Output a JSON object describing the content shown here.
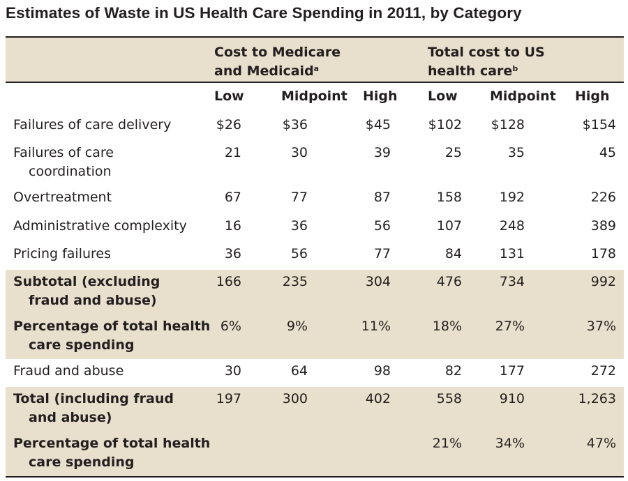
{
  "title": "Estimates of Waste in US Health Care Spending in 2011, by Category",
  "header": {
    "group1": {
      "line1": "Cost to Medicare",
      "line2": "and Medicaid",
      "note": "a"
    },
    "group2": {
      "line1": "Total cost to US",
      "line2": "health care",
      "note": "b"
    },
    "columns": [
      "Low",
      "Midpoint",
      "High",
      "Low",
      "Midpoint",
      "High"
    ]
  },
  "rows": [
    {
      "line1": "Failures of care delivery",
      "line2": "",
      "values": [
        "$26",
        "$36",
        "$45",
        "$102",
        "$128",
        "$154"
      ]
    },
    {
      "line1": "Failures of care",
      "line2": "coordination",
      "values": [
        "21",
        "30",
        "39",
        "25",
        "35",
        "45"
      ]
    },
    {
      "line1": "Overtreatment",
      "line2": "",
      "values": [
        "67",
        "77",
        "87",
        "158",
        "192",
        "226"
      ]
    },
    {
      "line1": "Administrative complexity",
      "line2": "",
      "values": [
        "16",
        "36",
        "56",
        "107",
        "248",
        "389"
      ]
    },
    {
      "line1": "Pricing failures",
      "line2": "",
      "values": [
        "36",
        "56",
        "77",
        "84",
        "131",
        "178"
      ]
    },
    {
      "line1": "Subtotal (excluding",
      "line2": "fraud and abuse)",
      "values": [
        "166",
        "235",
        "304",
        "476",
        "734",
        "992"
      ]
    },
    {
      "line1": "Percentage of total health",
      "line2": "care spending",
      "values": [
        "6%",
        "9%",
        "11%",
        "18%",
        "27%",
        "37%"
      ]
    },
    {
      "line1": "Fraud and abuse",
      "line2": "",
      "values": [
        "30",
        "64",
        "98",
        "82",
        "177",
        "272"
      ]
    },
    {
      "line1": "Total (including fraud",
      "line2": "and abuse)",
      "values": [
        "197",
        "300",
        "402",
        "558",
        "910",
        "1,263"
      ]
    },
    {
      "line1": "Percentage of total health",
      "line2": "care spending",
      "values": [
        "",
        "",
        "",
        "21%",
        "34%",
        "47%"
      ]
    }
  ]
}
